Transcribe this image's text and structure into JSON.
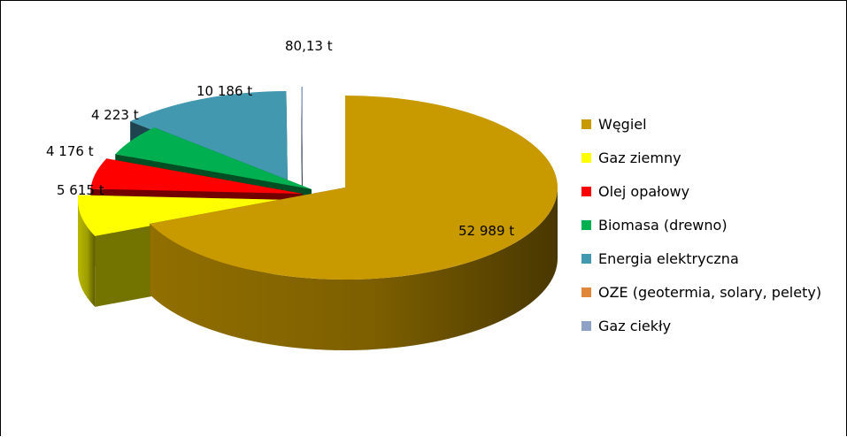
{
  "chart_data": {
    "type": "pie",
    "title": "",
    "unit": "t",
    "legend_position": "right",
    "series": [
      {
        "name": "Węgiel",
        "value": 52989,
        "label": "52 989 t",
        "color": "#C99A00"
      },
      {
        "name": "Gaz ziemny",
        "value": 5615,
        "label": "5 615  t",
        "color": "#FFFF00"
      },
      {
        "name": "Olej opałowy",
        "value": 4176,
        "label": "4 176 t",
        "color": "#FF0000"
      },
      {
        "name": "Biomasa (drewno)",
        "value": 4223,
        "label": "4 223 t",
        "color": "#00B050"
      },
      {
        "name": "Energia elektryczna",
        "value": 10186,
        "label": "10 186  t",
        "color": "#4198AF"
      },
      {
        "name": "OZE (geotermia, solary, pelety)",
        "value": 0,
        "label": "",
        "color": "#E0873A"
      },
      {
        "name": "Gaz ciekły",
        "value": 80.13,
        "label": "80,13 t",
        "color": "#8EA2C8"
      }
    ]
  }
}
